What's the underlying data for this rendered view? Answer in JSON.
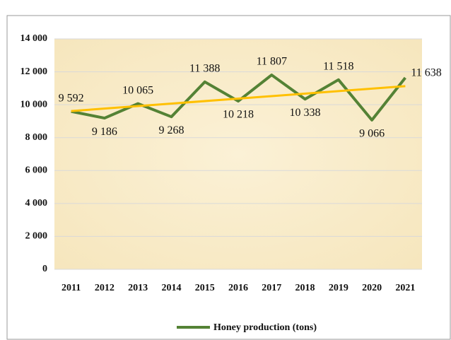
{
  "chart_data": {
    "type": "line",
    "categories": [
      "2011",
      "2012",
      "2013",
      "2014",
      "2015",
      "2016",
      "2017",
      "2018",
      "2019",
      "2020",
      "2021"
    ],
    "series": [
      {
        "name": "Honey production (tons)",
        "color": "#548235",
        "values": [
          9592,
          9186,
          10065,
          9268,
          11388,
          10218,
          11807,
          10338,
          11518,
          9066,
          11638
        ],
        "value_labels": [
          "9 592",
          "9 186",
          "10 065",
          "9 268",
          "11 388",
          "10 218",
          "11 807",
          "10 338",
          "11 518",
          "9 066",
          "11 638"
        ]
      }
    ],
    "trendline": {
      "color": "#ffc000",
      "values": [
        9614,
        11129
      ]
    },
    "ylim": [
      0,
      14000
    ],
    "yticks": [
      0,
      {
        "value": 2000,
        "label": "2 000"
      },
      {
        "value": 4000,
        "label": "4 000"
      },
      {
        "value": 6000,
        "label": "6 000"
      },
      {
        "value": 8000,
        "label": "8 000"
      },
      {
        "value": 10000,
        "label": "10 000"
      },
      {
        "value": 12000,
        "label": "12 000"
      },
      {
        "value": 14000,
        "label": "14 000"
      }
    ],
    "grid": true,
    "legend": "bottom"
  }
}
